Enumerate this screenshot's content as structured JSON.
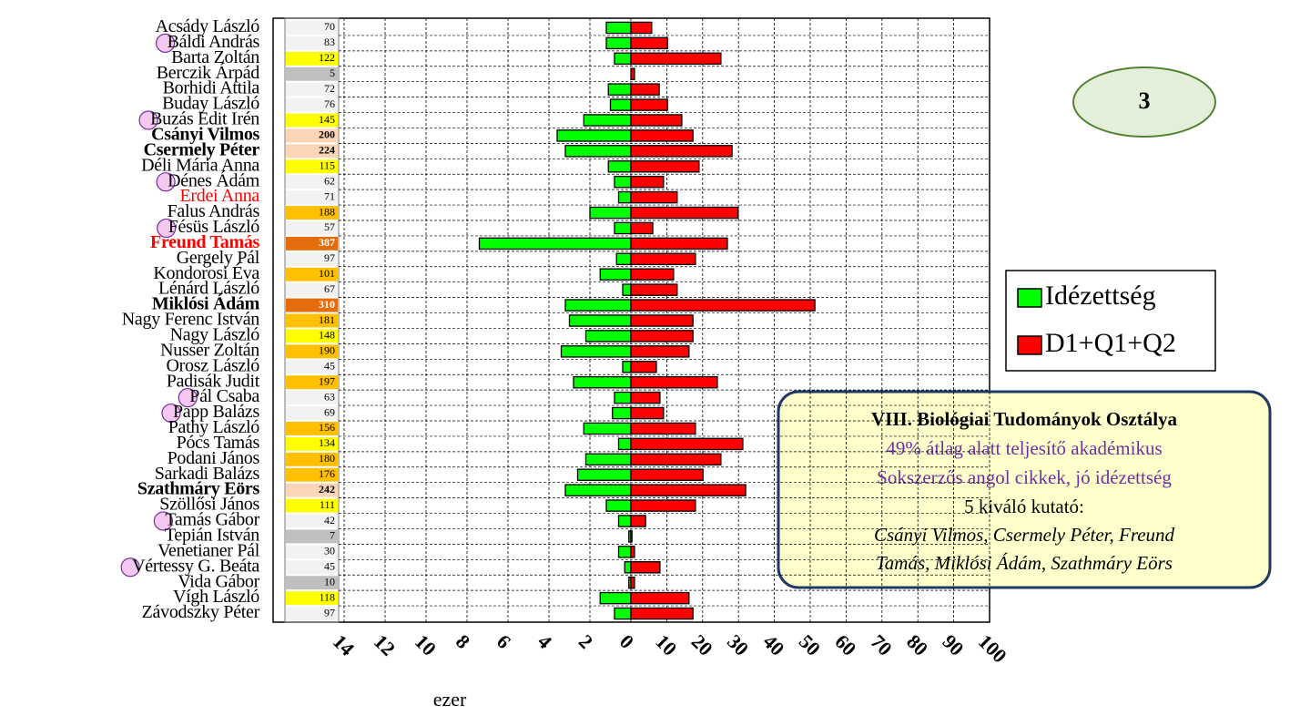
{
  "chart_data": {
    "type": "butterfly",
    "categories": [
      "Acsády László",
      "Báldi András",
      "Barta Zoltán",
      "Berczik Árpád",
      "Borhidi Attila",
      "Buday László",
      "Buzás Edit Irén",
      "Csányi Vilmos",
      "Csermely Péter",
      "Déli Mária Anna",
      "Dénes Ádám",
      "Erdei Anna",
      "Falus András",
      "Fésüs László",
      "Freund Tamás",
      "Gergely Pál",
      "Kondorosi Éva",
      "Lénárd László",
      "Miklósi Ádám",
      "Nagy Ferenc István",
      "Nagy László",
      "Nusser Zoltán",
      "Orosz László",
      "Padisák Judit",
      "Pál Csaba",
      "Papp Balázs",
      "Pathy László",
      "Pócs Tamás",
      "Podani János",
      "Sarkadi Balázs",
      "Szathmáry Eörs",
      "Szöllősi János",
      "Tamás Gábor",
      "Tepián István",
      "Venetianer Pál",
      "Vértessy G. Beáta",
      "Vida Gábor",
      "Vígh László",
      "Závodszky Péter"
    ],
    "name_styles": [
      "normal",
      "normal",
      "normal",
      "normal",
      "normal",
      "normal",
      "normal",
      "bold",
      "bold",
      "normal",
      "normal",
      "red",
      "normal",
      "normal",
      "bold-red",
      "normal",
      "normal",
      "normal",
      "bold",
      "normal",
      "normal",
      "normal",
      "normal",
      "normal",
      "normal",
      "normal",
      "normal",
      "normal",
      "normal",
      "normal",
      "bold",
      "normal",
      "normal",
      "normal",
      "normal",
      "normal",
      "normal",
      "normal",
      "normal"
    ],
    "circled": [
      false,
      true,
      false,
      false,
      false,
      false,
      true,
      false,
      false,
      false,
      true,
      false,
      false,
      true,
      false,
      false,
      false,
      false,
      false,
      false,
      false,
      false,
      false,
      false,
      true,
      true,
      false,
      false,
      false,
      false,
      false,
      false,
      true,
      false,
      false,
      true,
      false,
      false,
      false
    ],
    "scores": [
      70,
      83,
      122,
      5,
      72,
      76,
      145,
      200,
      224,
      115,
      62,
      71,
      188,
      57,
      387,
      97,
      101,
      67,
      310,
      181,
      148,
      190,
      45,
      197,
      63,
      69,
      156,
      134,
      180,
      176,
      242,
      111,
      42,
      7,
      30,
      45,
      10,
      118,
      97
    ],
    "score_colors": [
      "#f2f2f2",
      "#f2f2f2",
      "#ffff00",
      "#bfbfbf",
      "#f2f2f2",
      "#f2f2f2",
      "#ffff00",
      "#fbd5b5",
      "#fbd5b5",
      "#ffff00",
      "#f2f2f2",
      "#f2f2f2",
      "#ffc000",
      "#f2f2f2",
      "#e46c0a",
      "#f2f2f2",
      "#ffc000",
      "#f2f2f2",
      "#e46c0a",
      "#ffc000",
      "#ffff00",
      "#ffc000",
      "#f2f2f2",
      "#ffc000",
      "#f2f2f2",
      "#f2f2f2",
      "#ffc000",
      "#ffff00",
      "#ffc000",
      "#ffc000",
      "#fbd5b5",
      "#ffff00",
      "#f2f2f2",
      "#bfbfbf",
      "#f2f2f2",
      "#f2f2f2",
      "#bfbfbf",
      "#ffff00",
      "#f2f2f2"
    ],
    "series": [
      {
        "name": "Idézettség",
        "color": "#00ff00",
        "axis": "x",
        "values": [
          1.2,
          1.2,
          0.8,
          0,
          1.1,
          1.0,
          2.3,
          3.6,
          3.2,
          1.1,
          0.8,
          0.6,
          2.0,
          0.8,
          7.4,
          0.7,
          1.5,
          0.4,
          3.2,
          3.0,
          2.2,
          3.4,
          0.4,
          2.8,
          0.8,
          0.9,
          2.3,
          0.6,
          2.2,
          2.6,
          3.2,
          1.2,
          0.6,
          0.1,
          0.6,
          0.3,
          0.1,
          1.5,
          0.8
        ]
      },
      {
        "name": "D1+Q1+Q2",
        "color": "#ff0000",
        "axis": "x2",
        "values": [
          5.8,
          10.2,
          25.1,
          1.0,
          7.9,
          10.2,
          14.2,
          17.3,
          28.2,
          19.0,
          9.1,
          12.9,
          29.9,
          6.1,
          26.9,
          18.0,
          11.9,
          12.9,
          51.3,
          17.3,
          17.3,
          16.2,
          7.1,
          24.1,
          8.1,
          9.1,
          18.0,
          31.2,
          25.1,
          20.1,
          32.0,
          18.0,
          4.1,
          0.3,
          1.0,
          8.1,
          1.0,
          16.2,
          17.3
        ]
      }
    ],
    "xlim": [
      0,
      14
    ],
    "xticks": [
      14,
      12,
      10,
      8,
      6,
      4,
      2
    ],
    "x2lim": [
      0,
      100
    ],
    "x2ticks": [
      0,
      10,
      20,
      30,
      40,
      50,
      60,
      70,
      80,
      90,
      100
    ],
    "xlabel": "ezer",
    "grid": true,
    "badge": "3",
    "annotation": {
      "title": "VIII. Biológiai Tudományok Osztálya",
      "line1": "49% átlag alatt teljesítő akadémikus",
      "line2": "Sokszerzős angol cikkek, jó idézettség",
      "line3": "5 kiváló kutató:",
      "line4": "Csányi Vilmos, Csermely Péter, Freund",
      "line5": "Tamás, Miklósi Ádám, Szathmáry Eörs"
    }
  }
}
